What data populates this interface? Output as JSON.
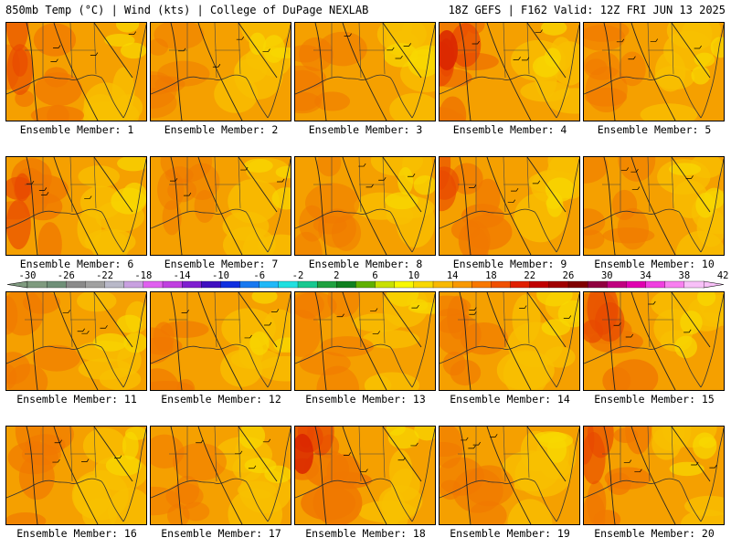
{
  "header": {
    "left": "850mb Temp (°C) | Wind (kts) | College of DuPage NEXLAB",
    "right": "18Z GEFS | F162 Valid: 12Z FRI JUN 13 2025"
  },
  "members": [
    {
      "label": "Ensemble Member: 1",
      "west_heat": 0.7
    },
    {
      "label": "Ensemble Member: 2",
      "west_heat": 0.2
    },
    {
      "label": "Ensemble Member: 3",
      "west_heat": 0.35
    },
    {
      "label": "Ensemble Member: 4",
      "west_heat": 1.0
    },
    {
      "label": "Ensemble Member: 5",
      "west_heat": 0.3
    },
    {
      "label": "Ensemble Member: 6",
      "west_heat": 0.75
    },
    {
      "label": "Ensemble Member: 7",
      "west_heat": 0.2
    },
    {
      "label": "Ensemble Member: 8",
      "west_heat": 0.25
    },
    {
      "label": "Ensemble Member: 9",
      "west_heat": 0.7
    },
    {
      "label": "Ensemble Member: 10",
      "west_heat": 0.35
    },
    {
      "label": "Ensemble Member: 11",
      "west_heat": 0.45
    },
    {
      "label": "Ensemble Member: 12",
      "west_heat": 0.55
    },
    {
      "label": "Ensemble Member: 13",
      "west_heat": 0.3
    },
    {
      "label": "Ensemble Member: 14",
      "west_heat": 0.5
    },
    {
      "label": "Ensemble Member: 15",
      "west_heat": 0.8
    },
    {
      "label": "Ensemble Member: 16",
      "west_heat": 0.55
    },
    {
      "label": "Ensemble Member: 17",
      "west_heat": 0.3
    },
    {
      "label": "Ensemble Member: 18",
      "west_heat": 0.9
    },
    {
      "label": "Ensemble Member: 19",
      "west_heat": 0.45
    },
    {
      "label": "Ensemble Member: 20",
      "west_heat": 0.7
    }
  ],
  "colorbar": {
    "tick_labels": [
      "-30",
      "-26",
      "-22",
      "-18",
      "-14",
      "-10",
      "-6",
      "-2",
      "2",
      "6",
      "10",
      "14",
      "18",
      "22",
      "26",
      "30",
      "34",
      "38",
      "42"
    ],
    "colors": [
      "#7f9a7f",
      "#6f8f78",
      "#8a8a8a",
      "#a0a0a0",
      "#b8b8c8",
      "#c8a0e0",
      "#e060f0",
      "#c040e0",
      "#8020d0",
      "#4010c0",
      "#1030e0",
      "#1878f0",
      "#20b8f8",
      "#20e0e0",
      "#18c890",
      "#20a040",
      "#108020",
      "#60b000",
      "#c8e000",
      "#f8f800",
      "#f8d800",
      "#f8b800",
      "#f89800",
      "#f87800",
      "#f05000",
      "#e02000",
      "#c00000",
      "#a00000",
      "#800000",
      "#900040",
      "#c00080",
      "#e000b0",
      "#f040e0",
      "#f880f0",
      "#f8c0f8"
    ]
  }
}
